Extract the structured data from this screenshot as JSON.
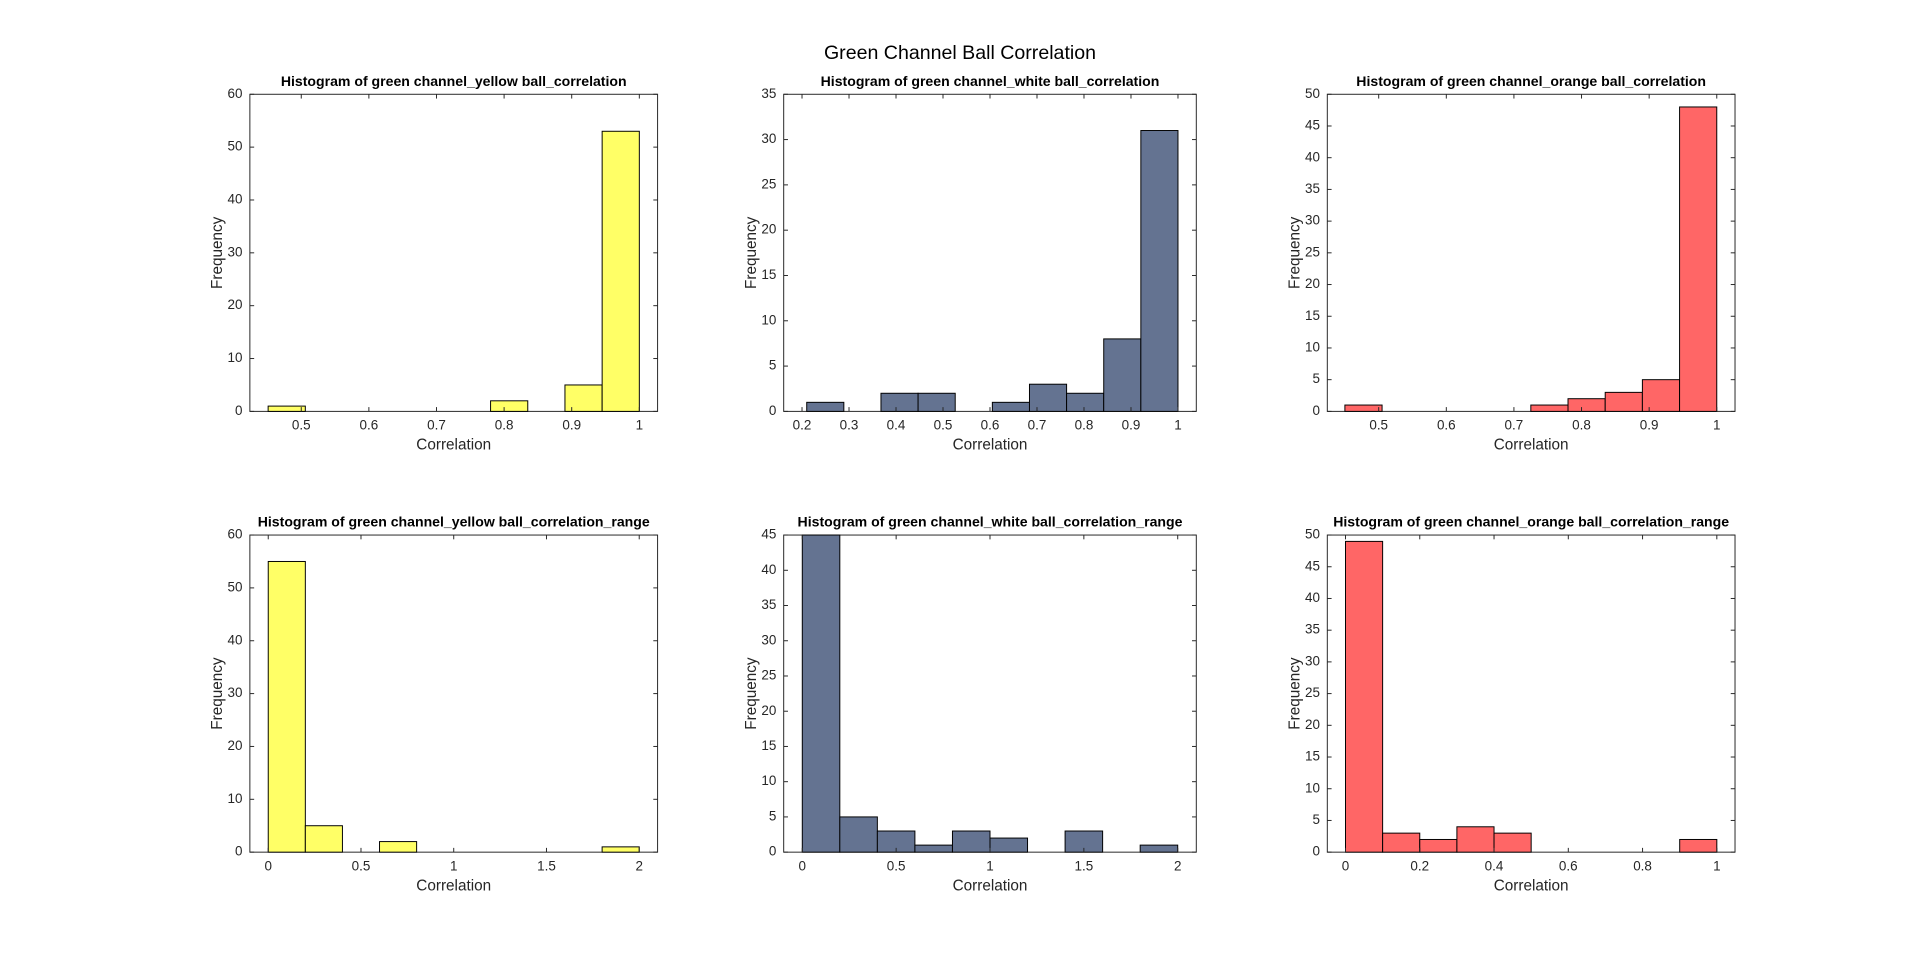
{
  "title": "Green Channel Ball Correlation",
  "chart_data": [
    {
      "type": "histogram",
      "title": "Histogram of green channel_yellow ball_correlation",
      "xlabel": "Correlation",
      "ylabel": "Frequency",
      "bins": [
        0.451,
        0.506,
        0.561,
        0.616,
        0.671,
        0.726,
        0.78,
        0.835,
        0.89,
        0.945,
        1.0
      ],
      "counts": [
        1,
        0,
        0,
        0,
        0,
        0,
        2,
        0,
        5,
        53
      ],
      "color": "#ffff66",
      "xlim": [
        0.424,
        1.027
      ],
      "ylim": [
        0,
        60
      ],
      "xticks": [
        0.5,
        0.6,
        0.7,
        0.8,
        0.9,
        1
      ],
      "yticks": [
        0,
        10,
        20,
        30,
        40,
        50,
        60
      ]
    },
    {
      "type": "histogram",
      "title": "Histogram of green channel_white ball_correlation",
      "xlabel": "Correlation",
      "ylabel": "Frequency",
      "bins": [
        0.21,
        0.289,
        0.368,
        0.447,
        0.526,
        0.605,
        0.684,
        0.763,
        0.842,
        0.921,
        1.0
      ],
      "counts": [
        1,
        0,
        2,
        2,
        0,
        1,
        3,
        2,
        8,
        31
      ],
      "color": "#647391",
      "xlim": [
        0.161,
        1.039
      ],
      "ylim": [
        0,
        35
      ],
      "xticks": [
        0.2,
        0.3,
        0.4,
        0.5,
        0.6,
        0.7,
        0.8,
        0.9,
        1
      ],
      "yticks": [
        0,
        5,
        10,
        15,
        20,
        25,
        30,
        35
      ]
    },
    {
      "type": "histogram",
      "title": "Histogram of green channel_orange ball_correlation",
      "xlabel": "Correlation",
      "ylabel": "Frequency",
      "bins": [
        0.45,
        0.505,
        0.56,
        0.615,
        0.67,
        0.725,
        0.78,
        0.835,
        0.89,
        0.945,
        1.0
      ],
      "counts": [
        1,
        0,
        0,
        0,
        0,
        1,
        2,
        3,
        5,
        48
      ],
      "color": "#ff6666",
      "xlim": [
        0.424,
        1.027
      ],
      "ylim": [
        0,
        50
      ],
      "xticks": [
        0.5,
        0.6,
        0.7,
        0.8,
        0.9,
        1
      ],
      "yticks": [
        0,
        5,
        10,
        15,
        20,
        25,
        30,
        35,
        40,
        45,
        50
      ]
    },
    {
      "type": "histogram",
      "title": "Histogram of green channel_yellow ball_correlation_range",
      "xlabel": "Correlation",
      "ylabel": "Frequency",
      "bins": [
        0,
        0.2,
        0.4,
        0.6,
        0.8,
        1.0,
        1.2,
        1.4,
        1.6,
        1.8,
        2.0
      ],
      "counts": [
        55,
        5,
        0,
        2,
        0,
        0,
        0,
        0,
        0,
        1
      ],
      "color": "#ffff66",
      "xlim": [
        -0.099,
        2.099
      ],
      "ylim": [
        0,
        60
      ],
      "xticks": [
        0,
        0.5,
        1,
        1.5,
        2
      ],
      "yticks": [
        0,
        10,
        20,
        30,
        40,
        50,
        60
      ]
    },
    {
      "type": "histogram",
      "title": "Histogram of green channel_white ball_correlation_range",
      "xlabel": "Correlation",
      "ylabel": "Frequency",
      "bins": [
        0,
        0.2,
        0.4,
        0.6,
        0.8,
        1.0,
        1.2,
        1.4,
        1.6,
        1.8,
        2.0
      ],
      "counts": [
        45,
        5,
        3,
        1,
        3,
        2,
        0,
        3,
        0,
        1
      ],
      "color": "#647391",
      "xlim": [
        -0.099,
        2.099
      ],
      "ylim": [
        0,
        45
      ],
      "xticks": [
        0,
        0.5,
        1,
        1.5,
        2
      ],
      "yticks": [
        0,
        5,
        10,
        15,
        20,
        25,
        30,
        35,
        40,
        45
      ]
    },
    {
      "type": "histogram",
      "title": "Histogram of green channel_orange ball_correlation_range",
      "xlabel": "Correlation",
      "ylabel": "Frequency",
      "bins": [
        0,
        0.1,
        0.2,
        0.3,
        0.4,
        0.5,
        0.6,
        0.7,
        0.8,
        0.9,
        1.0
      ],
      "counts": [
        49,
        3,
        2,
        4,
        3,
        0,
        0,
        0,
        0,
        2
      ],
      "color": "#ff6666",
      "xlim": [
        -0.049,
        1.049
      ],
      "ylim": [
        0,
        50
      ],
      "xticks": [
        0,
        0.2,
        0.4,
        0.6,
        0.8,
        1
      ],
      "yticks": [
        0,
        5,
        10,
        15,
        20,
        25,
        30,
        35,
        40,
        45,
        50
      ]
    }
  ]
}
